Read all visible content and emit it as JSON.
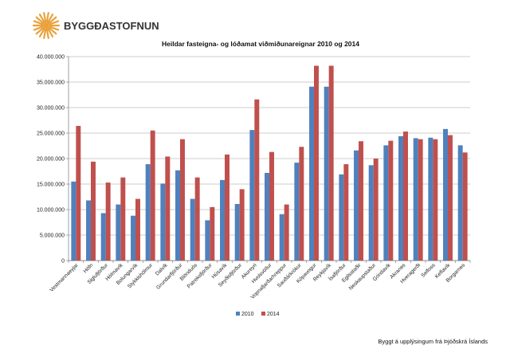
{
  "brand": {
    "name": "BYGGÐASTOFNUN",
    "logo_icon": "sunburst-logo-icon",
    "logo_color": "#e9a13b"
  },
  "source_note": "Byggt á upplýsingum frá Þjóðskrá Íslands",
  "chart_data": {
    "type": "bar",
    "title": "Heildar fasteigna- og lóðamat viðmiðunareignar 2010 og 2014",
    "xlabel": "",
    "ylabel": "",
    "ylim": [
      0,
      40000000
    ],
    "yticks": [
      "0",
      "5.000.000",
      "10.000.000",
      "15.000.000",
      "20.000.000",
      "25.000.000",
      "30.000.000",
      "35.000.000",
      "40.000.000"
    ],
    "grid": true,
    "legend": "bottom-center",
    "categories": [
      "Vestmannaeyjar",
      "Höfn",
      "Siglufjörður",
      "Hólmavík",
      "Bolungarvík",
      "Stykkishólmur",
      "Dalvík",
      "Grundarfjörður",
      "Blönduós",
      "Patreksfjörður",
      "Húsavík",
      "Seyðisfjörður",
      "Akureyri",
      "Hvolsvöllur",
      "Vopnafjarðarhreppur",
      "Sauðárkrókur",
      "Kópavogur",
      "Reykjavík",
      "Ísafjörður",
      "Egilsstaðir",
      "Neskaupstaður",
      "Grindavík",
      "Akranes",
      "Hveragerði",
      "Selfoss",
      "Keflavík",
      "Borgarnes"
    ],
    "series": [
      {
        "name": "2010",
        "color": "#4f81bd",
        "values": [
          15500000,
          11800000,
          9300000,
          11000000,
          8800000,
          18900000,
          15100000,
          17700000,
          12100000,
          7900000,
          15800000,
          11100000,
          25600000,
          17200000,
          9100000,
          19200000,
          34100000,
          34100000,
          16900000,
          21600000,
          18700000,
          22600000,
          24400000,
          24000000,
          24100000,
          25800000,
          22600000
        ]
      },
      {
        "name": "2014",
        "color": "#c0504d",
        "values": [
          26400000,
          19400000,
          15300000,
          16300000,
          12100000,
          25500000,
          20400000,
          23800000,
          16300000,
          10500000,
          20800000,
          14000000,
          31600000,
          21300000,
          11000000,
          22300000,
          38200000,
          38200000,
          18900000,
          23400000,
          20000000,
          23500000,
          25300000,
          23800000,
          23800000,
          24600000,
          21200000
        ]
      }
    ]
  }
}
